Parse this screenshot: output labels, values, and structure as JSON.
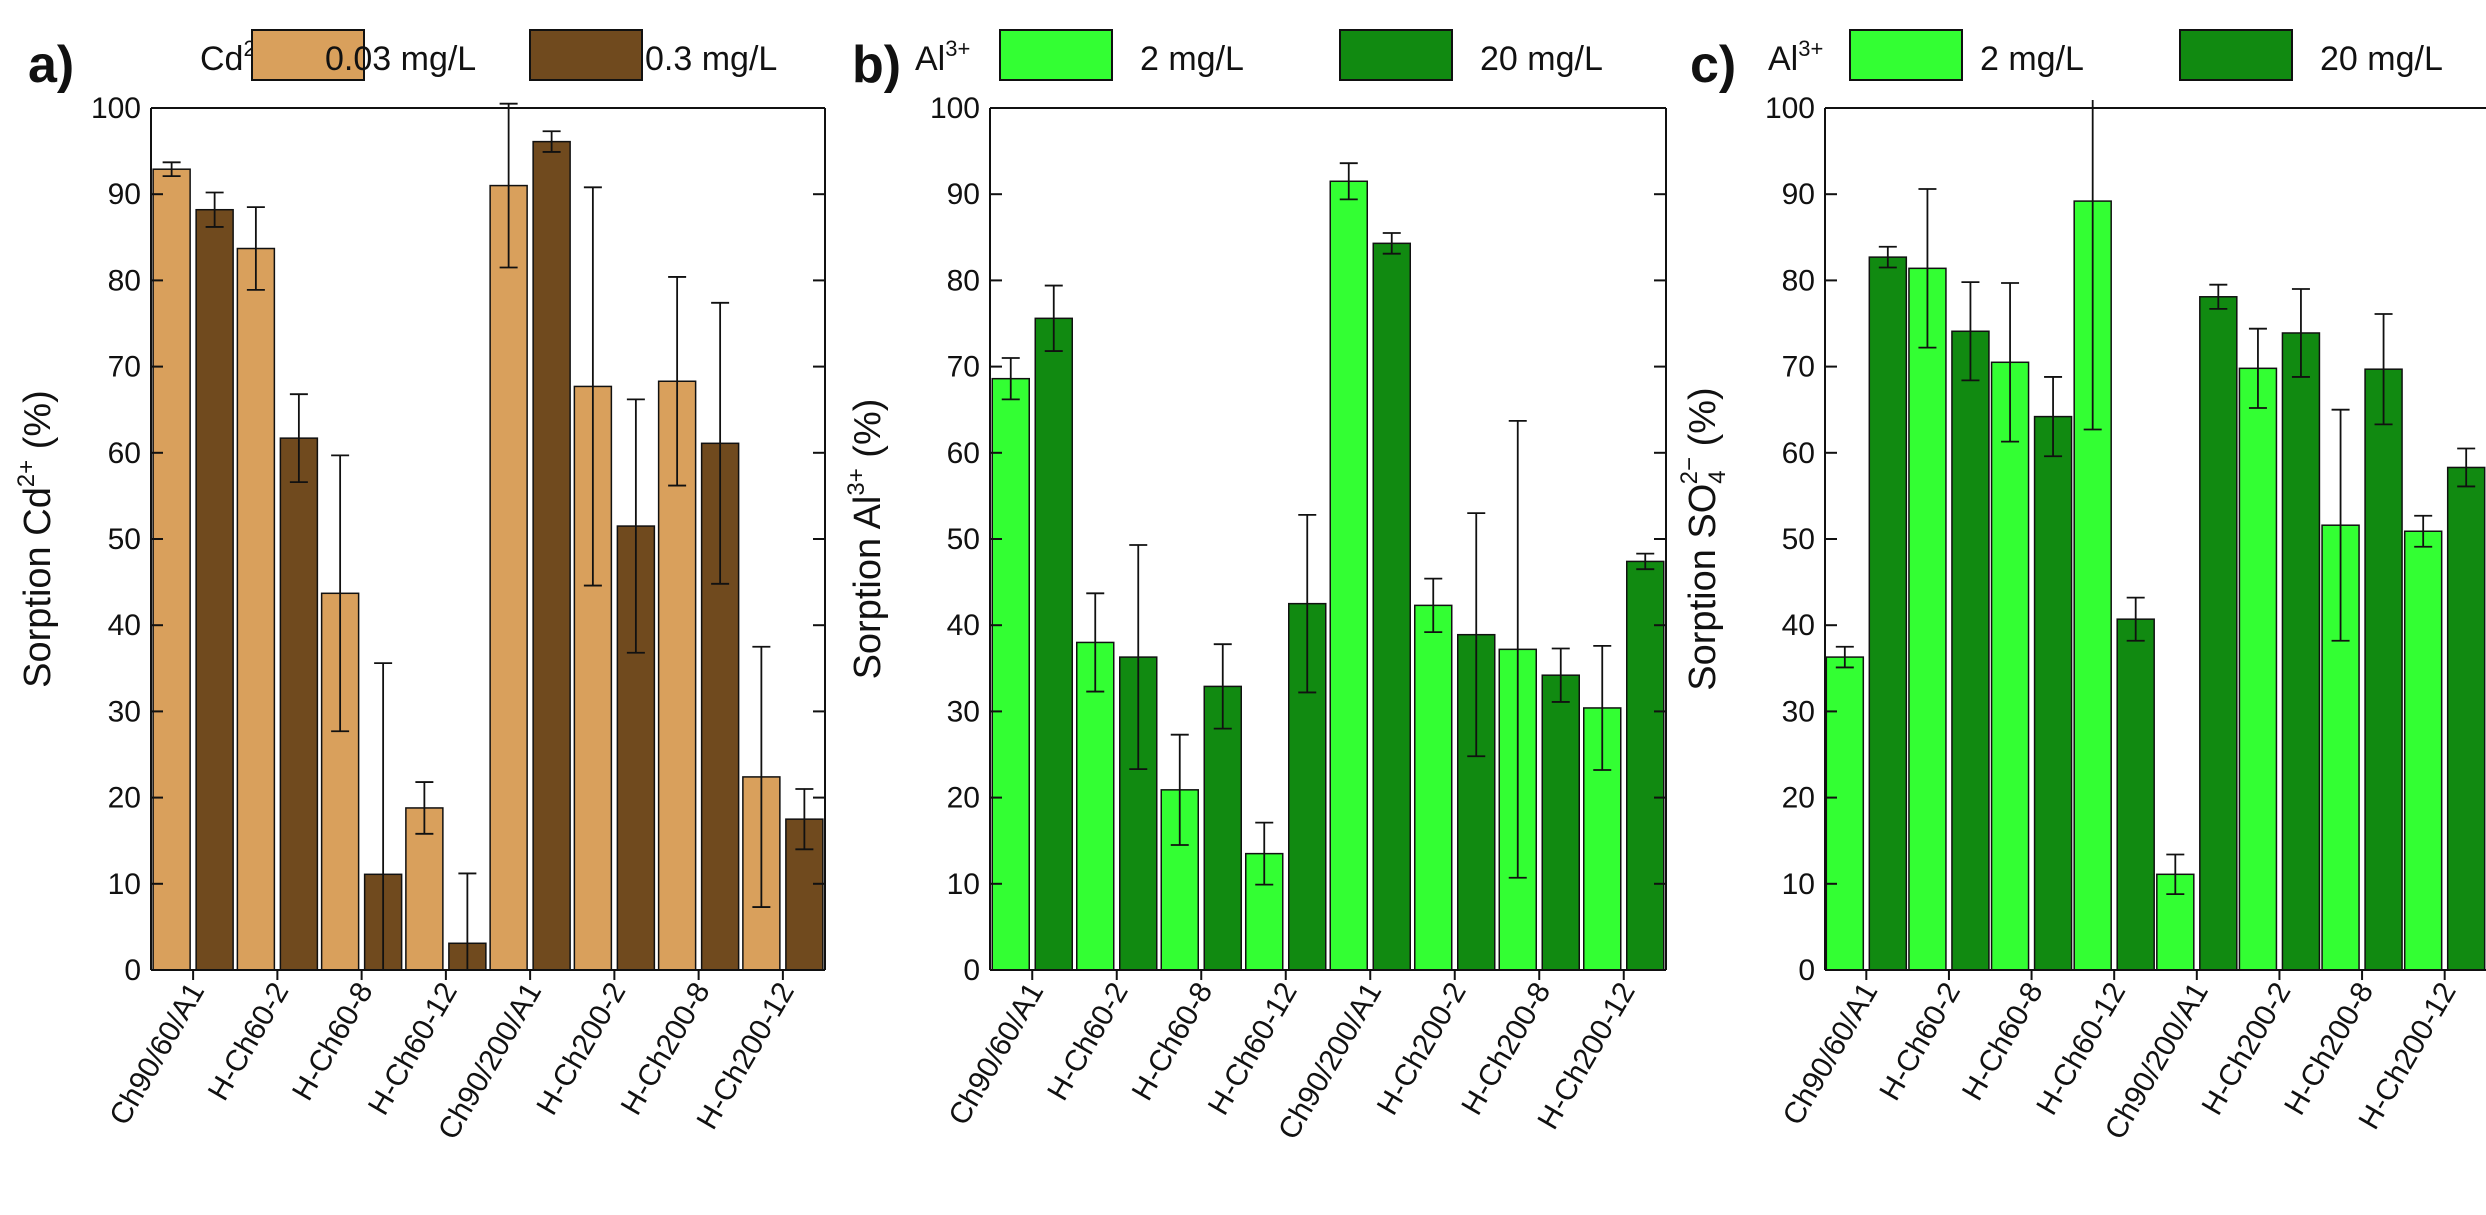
{
  "figure": {
    "panels": [
      "a)",
      "b)",
      "c)"
    ]
  },
  "chart_data": [
    {
      "type": "bar",
      "panel_label": "a)",
      "ylabel": {
        "base": "Sorption Cd",
        "sup": "2+",
        "suffix": " (%)"
      },
      "ylim": [
        0,
        100
      ],
      "yticks": [
        "0",
        "10",
        "20",
        "30",
        "40",
        "50",
        "60",
        "70",
        "80",
        "90",
        "100"
      ],
      "categories": [
        "Ch90/60/A1",
        "H-Ch60-2",
        "H-Ch60-8",
        "H-Ch60-12",
        "Ch90/200/A1",
        "H-Ch200-2",
        "H-Ch200-8",
        "H-Ch200-12"
      ],
      "legend": {
        "prefix": "Cd",
        "prefix_sup": "2+",
        "position": "top"
      },
      "series": [
        {
          "name": "0.03 mg/L",
          "color": "#d9a05c",
          "values": [
            92.9,
            83.7,
            43.7,
            18.8,
            91.0,
            67.7,
            68.3,
            22.4
          ],
          "errors": [
            0.8,
            4.8,
            16.0,
            3.0,
            9.5,
            23.1,
            12.1,
            15.1
          ]
        },
        {
          "name": "0.3 mg/L",
          "color": "#704a1e",
          "values": [
            88.2,
            61.7,
            11.1,
            3.1,
            96.1,
            51.5,
            61.1,
            17.5
          ],
          "errors": [
            2.0,
            5.1,
            24.5,
            8.1,
            1.2,
            14.7,
            16.3,
            3.5
          ]
        }
      ]
    },
    {
      "type": "bar",
      "panel_label": "b)",
      "ylabel": {
        "base": "Sorption Al",
        "sup": "3+",
        "suffix": " (%)"
      },
      "ylim": [
        0,
        100
      ],
      "yticks": [
        "0",
        "10",
        "20",
        "30",
        "40",
        "50",
        "60",
        "70",
        "80",
        "90",
        "100"
      ],
      "categories": [
        "Ch90/60/A1",
        "H-Ch60-2",
        "H-Ch60-8",
        "H-Ch60-12",
        "Ch90/200/A1",
        "H-Ch200-2",
        "H-Ch200-8",
        "H-Ch200-12"
      ],
      "legend": {
        "prefix": "Al",
        "prefix_sup": "3+",
        "position": "top"
      },
      "series": [
        {
          "name": "2 mg/L",
          "color": "#33ff33",
          "values": [
            68.6,
            38.0,
            20.9,
            13.5,
            91.5,
            42.3,
            37.2,
            30.4
          ],
          "errors": [
            2.4,
            5.7,
            6.4,
            3.6,
            2.1,
            3.1,
            26.5,
            7.2
          ]
        },
        {
          "name": "20 mg/L",
          "color": "#118a11",
          "values": [
            75.6,
            36.3,
            32.9,
            42.5,
            84.3,
            38.9,
            34.2,
            47.4
          ],
          "errors": [
            3.8,
            13.0,
            4.9,
            10.3,
            1.2,
            14.1,
            3.1,
            0.9
          ]
        }
      ]
    },
    {
      "type": "bar",
      "panel_label": "c)",
      "ylabel": {
        "base": "Sorption SO",
        "sup": "2−",
        "sub": "4",
        "suffix": " (%)"
      },
      "ylim": [
        0,
        100
      ],
      "yticks": [
        "0",
        "10",
        "20",
        "30",
        "40",
        "50",
        "60",
        "70",
        "80",
        "90",
        "100"
      ],
      "categories": [
        "Ch90/60/A1",
        "H-Ch60-2",
        "H-Ch60-8",
        "H-Ch60-12",
        "Ch90/200/A1",
        "H-Ch200-2",
        "H-Ch200-8",
        "H-Ch200-12"
      ],
      "legend": {
        "prefix": "Al",
        "prefix_sup": "3+",
        "position": "top"
      },
      "series": [
        {
          "name": "2 mg/L",
          "color": "#33ff33",
          "values": [
            36.3,
            81.4,
            70.5,
            89.2,
            11.1,
            69.8,
            51.6,
            50.9
          ],
          "errors": [
            1.2,
            9.2,
            9.2,
            26.5,
            2.3,
            4.6,
            13.4,
            1.8
          ]
        },
        {
          "name": "20 mg/L",
          "color": "#118a11",
          "values": [
            82.7,
            74.1,
            64.2,
            40.7,
            78.1,
            73.9,
            69.7,
            58.3
          ],
          "errors": [
            1.2,
            5.7,
            4.6,
            2.5,
            1.4,
            5.1,
            6.4,
            2.2
          ]
        }
      ]
    }
  ]
}
